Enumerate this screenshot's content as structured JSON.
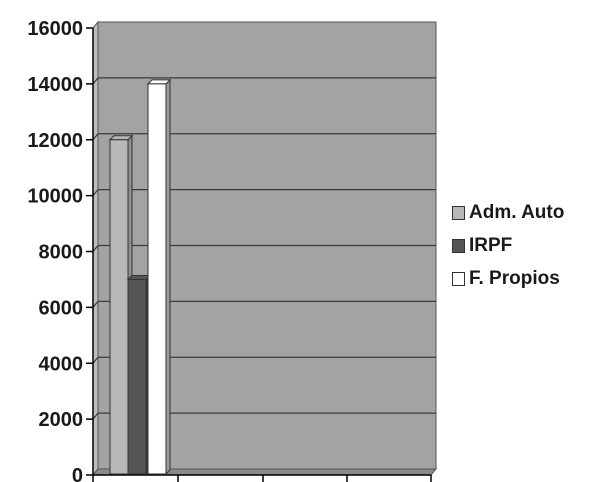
{
  "chart_data": {
    "type": "bar",
    "title": "",
    "xlabel": "",
    "ylabel": "",
    "ylim": [
      0,
      16000
    ],
    "yticks": [
      0,
      2000,
      4000,
      6000,
      8000,
      10000,
      12000,
      14000,
      16000
    ],
    "grid": true,
    "three_d": true,
    "legend_position": "right",
    "colors": {
      "plot_background": "#a3a3a3",
      "wall_side": "#bdbdbd",
      "floor": "#8a8a8a",
      "gridline": "#3a3a3a"
    },
    "series": [
      {
        "name": "Adm. Auto",
        "value": 12000,
        "color": "#b8b8b8"
      },
      {
        "name": "IRPF",
        "value": 7000,
        "color": "#555555"
      },
      {
        "name": "F. Propios",
        "value": 14000,
        "color": "#ffffff"
      }
    ]
  }
}
